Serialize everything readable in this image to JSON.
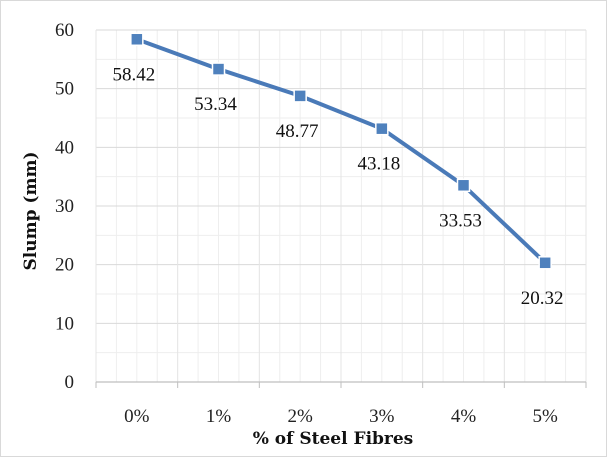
{
  "chart_data": {
    "type": "line",
    "title": "",
    "xlabel": "% of Steel Fibres",
    "ylabel": "Slump (mm)",
    "categories": [
      "0%",
      "1%",
      "2%",
      "3%",
      "4%",
      "5%"
    ],
    "series": [
      {
        "values": [
          58.42,
          53.34,
          48.77,
          43.18,
          33.53,
          20.32
        ],
        "data_labels": [
          "58.42",
          "53.34",
          "48.77",
          "43.18",
          "33.53",
          "20.32"
        ],
        "color": "#4a7ab8",
        "marker": "square",
        "marker_color": "#4f81bd"
      }
    ],
    "ylim": [
      0,
      60
    ],
    "y_ticks": [
      0,
      10,
      20,
      30,
      40,
      50,
      60
    ],
    "y_tick_labels": [
      "0",
      "10",
      "20",
      "30",
      "40",
      "50",
      "60"
    ],
    "grid": true,
    "minor_grid": true,
    "legend": "none",
    "grid_color": "#d9d9d9",
    "axis_color": "#bfbfbf"
  }
}
